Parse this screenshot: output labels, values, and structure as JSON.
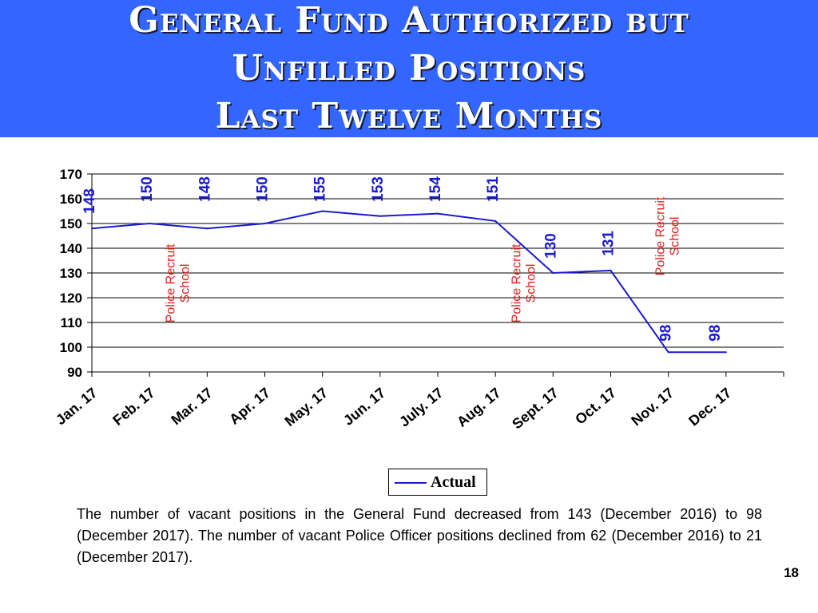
{
  "title": {
    "line1": "General Fund Authorized but",
    "line2": "Unfilled Positions",
    "line3": "Last Twelve Months"
  },
  "chart_data": {
    "type": "line",
    "categories": [
      "Jan. 17",
      "Feb. 17",
      "Mar. 17",
      "Apr. 17",
      "May. 17",
      "Jun. 17",
      "July. 17",
      "Aug. 17",
      "Sept. 17",
      "Oct. 17",
      "Nov. 17",
      "Dec. 17"
    ],
    "series": [
      {
        "name": "Actual",
        "values": [
          148,
          150,
          148,
          150,
          155,
          153,
          154,
          151,
          130,
          131,
          98,
          98
        ],
        "color": "#1a1ad0"
      }
    ],
    "data_labels": [
      "148",
      "150",
      "148",
      "150",
      "155",
      "153",
      "154",
      "151",
      "130",
      "131",
      "98",
      "98"
    ],
    "ylim": [
      90,
      170
    ],
    "yticks": [
      90,
      100,
      110,
      120,
      130,
      140,
      150,
      160,
      170
    ],
    "grid": true,
    "legend_position": "bottom",
    "label_color": "#1a1ad0",
    "annotation_color": "#e0201a",
    "annotations": [
      {
        "line1": "Police Recruit",
        "line2": "School",
        "category_index": 1.5
      },
      {
        "line1": "Police Recruit",
        "line2": "School",
        "category_index": 7.5
      },
      {
        "line1": "Police Recruit",
        "line2": "School",
        "category_index": 10.0
      }
    ]
  },
  "legend": {
    "label": "Actual"
  },
  "caption": "The number of vacant positions in the General Fund decreased from 143 (December 2016) to 98 (December 2017).  The number of vacant Police Officer positions declined from 62 (December 2016) to 21 (December 2017).",
  "page_number": "18"
}
